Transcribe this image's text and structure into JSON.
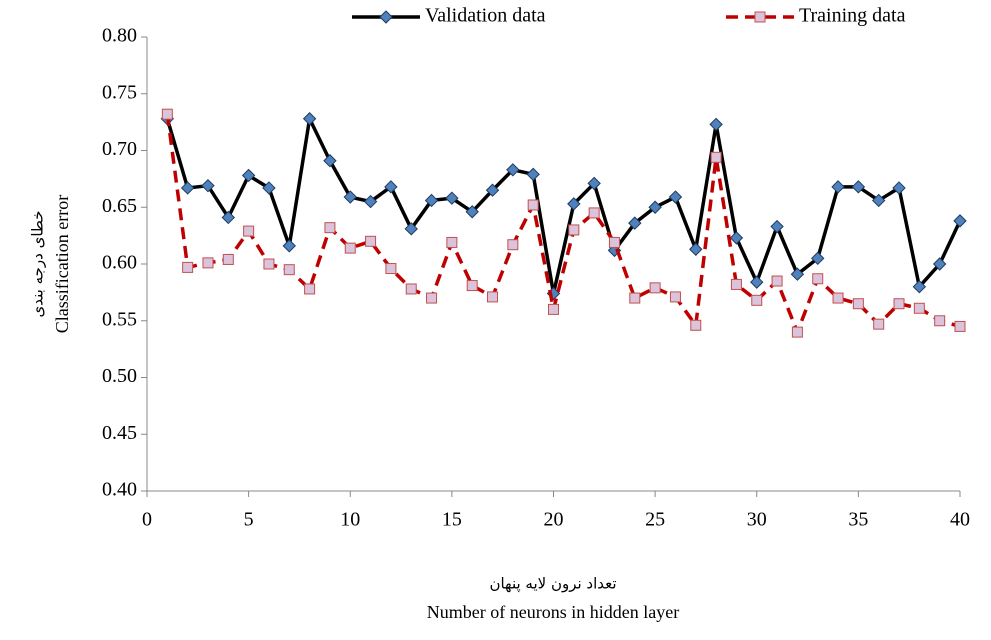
{
  "chart_data": {
    "type": "line",
    "x_label": [
      "تعداد نرون لایه پنهان",
      "Number of neurons in hidden layer"
    ],
    "y_label": [
      "خطای درجه بندی",
      "Classification error"
    ],
    "x": [
      1,
      2,
      3,
      4,
      5,
      6,
      7,
      8,
      9,
      10,
      11,
      12,
      13,
      14,
      15,
      16,
      17,
      18,
      19,
      20,
      21,
      22,
      23,
      24,
      25,
      26,
      27,
      28,
      29,
      30,
      31,
      32,
      33,
      34,
      35,
      36,
      37,
      38,
      39,
      40
    ],
    "series": [
      {
        "name": "Validation data",
        "color": "#000000",
        "marker_color": "#4f81bd",
        "dashed": false,
        "marker": "diamond",
        "values": [
          0.728,
          0.667,
          0.669,
          0.641,
          0.678,
          0.667,
          0.616,
          0.728,
          0.691,
          0.659,
          0.655,
          0.668,
          0.631,
          0.656,
          0.658,
          0.646,
          0.665,
          0.683,
          0.679,
          0.574,
          0.653,
          0.671,
          0.612,
          0.636,
          0.65,
          0.659,
          0.613,
          0.723,
          0.623,
          0.584,
          0.633,
          0.591,
          0.605,
          0.668,
          0.668,
          0.656,
          0.667,
          0.58,
          0.6,
          0.638
        ]
      },
      {
        "name": "Training data",
        "color": "#c00000",
        "marker_color": "#dcc3dc",
        "dashed": true,
        "marker": "square",
        "values": [
          0.732,
          0.597,
          0.601,
          0.604,
          0.629,
          0.6,
          0.595,
          0.578,
          0.632,
          0.614,
          0.62,
          0.596,
          0.578,
          0.57,
          0.619,
          0.581,
          0.571,
          0.617,
          0.652,
          0.56,
          0.63,
          0.645,
          0.619,
          0.57,
          0.579,
          0.571,
          0.546,
          0.694,
          0.582,
          0.568,
          0.585,
          0.54,
          0.587,
          0.57,
          0.565,
          0.547,
          0.565,
          0.561,
          0.55,
          0.545
        ]
      }
    ],
    "xlim": [
      0,
      40
    ],
    "xticks": [
      0,
      5,
      10,
      15,
      20,
      25,
      30,
      35,
      40
    ],
    "ylim": [
      0.4,
      0.8
    ],
    "yticks": [
      {
        "value": 0.4,
        "label": "0.40"
      },
      {
        "value": 0.45,
        "label": "0.45"
      },
      {
        "value": 0.5,
        "label": "0.50"
      },
      {
        "value": 0.55,
        "label": "0.55"
      },
      {
        "value": 0.6,
        "label": "0.60"
      },
      {
        "value": 0.65,
        "label": "0.65"
      },
      {
        "value": 0.7,
        "label": "0.70"
      },
      {
        "value": 0.75,
        "label": "0.75"
      },
      {
        "value": 0.8,
        "label": "0.80"
      }
    ],
    "grid": false,
    "legend": "top"
  }
}
